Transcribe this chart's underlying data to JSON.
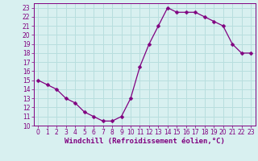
{
  "x": [
    0,
    1,
    2,
    3,
    4,
    5,
    6,
    7,
    8,
    9,
    10,
    11,
    12,
    13,
    14,
    15,
    16,
    17,
    18,
    19,
    20,
    21,
    22,
    23
  ],
  "y": [
    15,
    14.5,
    14,
    13,
    12.5,
    11.5,
    11,
    10.5,
    10.5,
    11,
    13,
    16.5,
    19,
    21,
    23,
    22.5,
    22.5,
    22.5,
    22,
    21.5,
    21,
    19,
    18,
    18
  ],
  "line_color": "#800080",
  "marker": "D",
  "marker_size": 2.5,
  "bg_color": "#d8f0f0",
  "grid_color": "#b8dede",
  "xlabel": "Windchill (Refroidissement éolien,°C)",
  "ylim": [
    10,
    23.5
  ],
  "xlim": [
    -0.5,
    23.5
  ],
  "yticks": [
    10,
    11,
    12,
    13,
    14,
    15,
    16,
    17,
    18,
    19,
    20,
    21,
    22,
    23
  ],
  "xticks": [
    0,
    1,
    2,
    3,
    4,
    5,
    6,
    7,
    8,
    9,
    10,
    11,
    12,
    13,
    14,
    15,
    16,
    17,
    18,
    19,
    20,
    21,
    22,
    23
  ],
  "tick_fontsize": 5.5,
  "xlabel_fontsize": 6.5,
  "tick_color": "#800080",
  "axis_color": "#800080",
  "spine_color": "#800080"
}
